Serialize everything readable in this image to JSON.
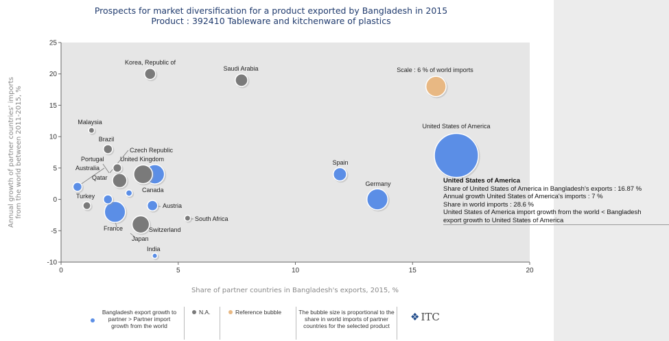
{
  "chart_data": {
    "type": "scatter",
    "title": "Prospects for market diversification for a product exported by Bangladesh in 2015",
    "subtitle": "Product : 392410 Tableware and kitchenware of plastics",
    "xlabel": "Share of partner countries in Bangladesh's exports, 2015, %",
    "ylabel_lines": [
      "Annual growth of partner countries' imports",
      "from the world between 2011-2015, %"
    ],
    "xlim": [
      0,
      20
    ],
    "ylim": [
      -10,
      25
    ],
    "x_ticks": [
      0,
      5,
      10,
      15,
      20
    ],
    "y_ticks": [
      -10,
      -5,
      0,
      5,
      10,
      15,
      20,
      25
    ],
    "grid": false,
    "colors": {
      "blue": "#5b8ee6",
      "gray": "#7a7a7a",
      "orange": "#e8b883",
      "plot_bg": "#e6e6e6"
    },
    "points": [
      {
        "label": "United States of America",
        "x": 16.87,
        "y": 7,
        "size": 28.6,
        "group": "blue"
      },
      {
        "label": "Germany",
        "x": 13.5,
        "y": 0,
        "size": 6.5,
        "group": "blue"
      },
      {
        "label": "Spain",
        "x": 11.9,
        "y": 4,
        "size": 2.6,
        "group": "blue"
      },
      {
        "label": "Canada",
        "x": 4.0,
        "y": 4,
        "size": 5.5,
        "group": "blue"
      },
      {
        "label": "France",
        "x": 2.3,
        "y": -2,
        "size": 6.5,
        "group": "blue"
      },
      {
        "label": "Austria",
        "x": 3.9,
        "y": -1,
        "size": 1.6,
        "group": "blue"
      },
      {
        "label": "Portugal",
        "x": 2.0,
        "y": 0,
        "size": 1.2,
        "group": "blue"
      },
      {
        "label": "Australia",
        "x": 0.7,
        "y": 2,
        "size": 1.2,
        "group": "blue"
      },
      {
        "label": "Czech Republic",
        "x": 2.9,
        "y": 1,
        "size": 0.6,
        "group": "blue"
      },
      {
        "label": "India",
        "x": 4.0,
        "y": -9,
        "size": 0.4,
        "group": "blue"
      },
      {
        "label": "Korea, Republic of",
        "x": 3.8,
        "y": 20,
        "size": 1.8,
        "group": "gray"
      },
      {
        "label": "Saudi Arabia",
        "x": 7.7,
        "y": 19,
        "size": 2.3,
        "group": "gray"
      },
      {
        "label": "Malaysia",
        "x": 1.3,
        "y": 11,
        "size": 0.5,
        "group": "gray"
      },
      {
        "label": "Brazil",
        "x": 2.0,
        "y": 8,
        "size": 1.2,
        "group": "gray"
      },
      {
        "label": "United Kingdom",
        "x": 3.5,
        "y": 4,
        "size": 5.2,
        "group": "gray"
      },
      {
        "label": "Qatar",
        "x": 2.4,
        "y": 5,
        "size": 1.1,
        "group": "gray"
      },
      {
        "label": "",
        "x": 2.5,
        "y": 3,
        "size": 3.0,
        "group": "gray"
      },
      {
        "label": "Turkey",
        "x": 1.1,
        "y": -1,
        "size": 0.9,
        "group": "gray"
      },
      {
        "label": "Switzerland",
        "x": 3.4,
        "y": -4,
        "size": 4.4,
        "group": "gray"
      },
      {
        "label": "South Africa",
        "x": 5.4,
        "y": -3,
        "size": 0.5,
        "group": "gray"
      },
      {
        "label": "Scale : 6 % of world imports",
        "x": 16.0,
        "y": 18,
        "size": 6.0,
        "group": "orange"
      }
    ],
    "annotations": [
      "Czech Republic",
      "United Kingdom",
      "Portugal",
      "Australia",
      "Qatar",
      "Canada",
      "Turkey",
      "France",
      "Japan",
      "Austria",
      "South Africa",
      "Switzerland",
      "India"
    ]
  },
  "tooltip": {
    "title": "United States of America",
    "line1": "Share of United States of America in Bangladesh's exports : 16.87 %",
    "line2": "Annual growth United States of America's imports : 7 %",
    "line3": "Share in world imports : 28.6 %",
    "line4": "United States of America import growth from the world < Bangladesh",
    "line5": "export growth to United States of America"
  },
  "legend": {
    "blue_text": "Bangladesh export growth to partner > Partner import growth from the world",
    "gray_text": "N.A.",
    "orange_text": "Reference bubble",
    "size_text": "The bubble size is proportional to the share in world imports of partner countries for the selected product",
    "logo_text": "ITC"
  }
}
